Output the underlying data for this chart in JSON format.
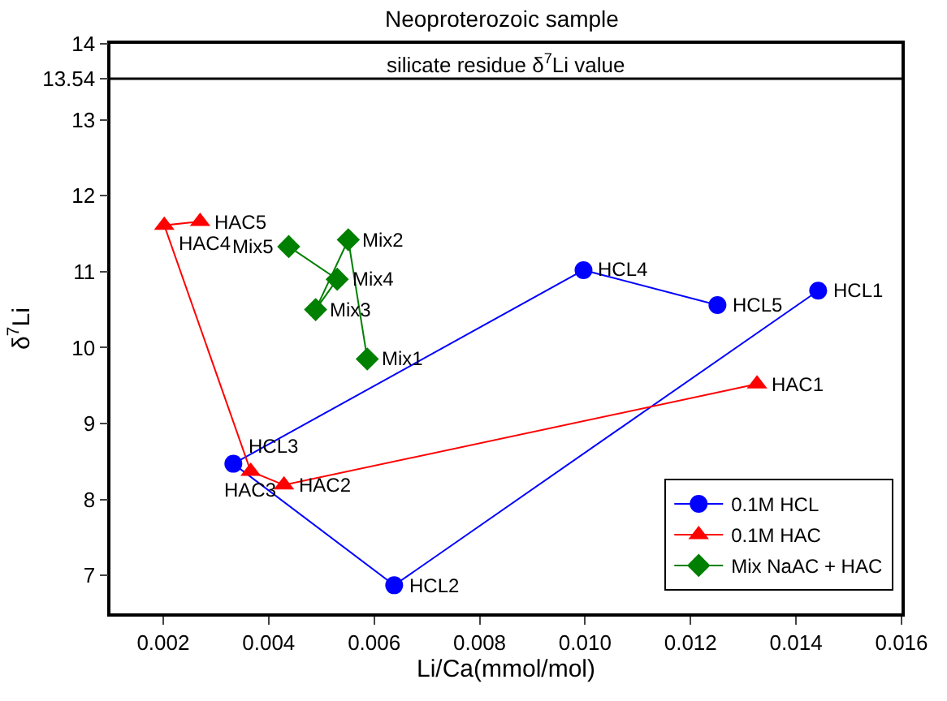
{
  "chart_data": {
    "type": "line",
    "title": "Neoproterozoic sample",
    "xlabel": "Li/Ca(mmol/mol)",
    "ylabel": "δ$^{7}$Li",
    "xlim": [
      0.001,
      0.016
    ],
    "xticks": [
      0.002,
      0.004,
      0.006,
      0.008,
      "0.010",
      0.012,
      0.014,
      0.016
    ],
    "ylim": [
      6.5,
      14
    ],
    "yticks": [
      7,
      8,
      9,
      10,
      11,
      12,
      13,
      13.54,
      14
    ],
    "series": [
      {
        "name": "0.1M HCL",
        "color": "#0000ff",
        "marker": "circle",
        "x": [
          0.01442,
          0.00638,
          0.00333,
          0.00997,
          0.01251
        ],
        "values": [
          10.75,
          6.87,
          8.47,
          11.02,
          10.56
        ]
      },
      {
        "name": "0.1M HAC",
        "color": "#ff0000",
        "marker": "triangle",
        "x": [
          0.01326,
          0.00429,
          0.00366,
          0.00202,
          0.0027
        ],
        "values": [
          9.52,
          8.19,
          8.37,
          11.61,
          11.66
        ]
      },
      {
        "name": "Mix NaAC + HAC",
        "color": "#008000",
        "marker": "diamond",
        "x": [
          0.00587,
          0.00551,
          0.00489,
          0.0053,
          0.00438
        ],
        "values": [
          9.85,
          11.42,
          10.5,
          10.9,
          11.33
        ]
      }
    ],
    "annotations": [
      {
        "text": "HCL1",
        "x": 0.01442,
        "y": 10.75
      },
      {
        "text": "HCL2",
        "x": 0.00638,
        "y": 6.87
      },
      {
        "text": "HCL3",
        "x": 0.00333,
        "y": 8.47
      },
      {
        "text": "HCL4",
        "x": 0.00997,
        "y": 11.02
      },
      {
        "text": "HCL5",
        "x": 0.01251,
        "y": 10.56
      },
      {
        "text": "HAC1",
        "x": 0.01326,
        "y": 9.52
      },
      {
        "text": "HAC2",
        "x": 0.00429,
        "y": 8.19
      },
      {
        "text": "HAC3",
        "x": 0.00366,
        "y": 8.37
      },
      {
        "text": "HAC4",
        "x": 0.00202,
        "y": 11.61
      },
      {
        "text": "HAC5",
        "x": 0.0027,
        "y": 11.66
      },
      {
        "text": "Mix1",
        "x": 0.00587,
        "y": 9.85
      },
      {
        "text": "Mix2",
        "x": 0.00551,
        "y": 11.42
      },
      {
        "text": "Mix3",
        "x": 0.00489,
        "y": 10.5
      },
      {
        "text": "Mix4",
        "x": 0.0053,
        "y": 10.9
      },
      {
        "text": "Mix5",
        "x": 0.00438,
        "y": 11.33
      }
    ],
    "ref_lines": [
      {
        "axis": "y",
        "value": 13.54,
        "label": "silicate residue δ$^{7}$Li value",
        "color": "#000000",
        "line_style": "solid"
      }
    ],
    "legend": "bottom right"
  }
}
